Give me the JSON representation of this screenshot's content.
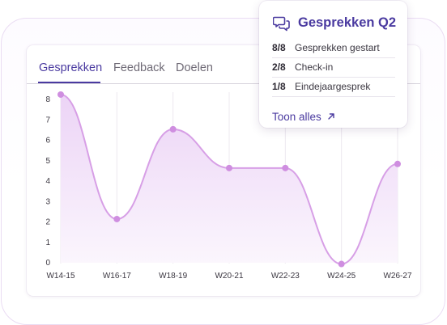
{
  "tabs": [
    {
      "label": "Gesprekken",
      "active": true
    },
    {
      "label": "Feedback",
      "active": false
    },
    {
      "label": "Doelen",
      "active": false
    }
  ],
  "popover": {
    "icon": "chat-bubbles-icon",
    "title": "Gesprekken Q2",
    "rows": [
      {
        "count": "8/8",
        "label": "Gesprekken gestart"
      },
      {
        "count": "2/8",
        "label": "Check-in"
      },
      {
        "count": "1/8",
        "label": "Eindejaargesprek"
      }
    ],
    "link_label": "Toon alles",
    "link_icon": "arrow-up-right-icon"
  },
  "colors": {
    "accent": "#4a3aa0",
    "line": "#d79fe6",
    "point": "#cf8ee0",
    "area_top": "#ecd4f6",
    "area_bottom": "#fbf6fd"
  },
  "chart_data": {
    "type": "area",
    "categories": [
      "W14-15",
      "W16-17",
      "W18-19",
      "W20-21",
      "W22-23",
      "W24-25",
      "W26-27"
    ],
    "values": [
      8.2,
      2.1,
      6.5,
      4.6,
      4.6,
      -0.1,
      4.8
    ],
    "yticks": [
      0,
      1,
      2,
      3,
      4,
      5,
      6,
      7,
      8
    ],
    "ylim": [
      0,
      8
    ],
    "grid": "vertical",
    "title": "",
    "xlabel": "",
    "ylabel": ""
  }
}
